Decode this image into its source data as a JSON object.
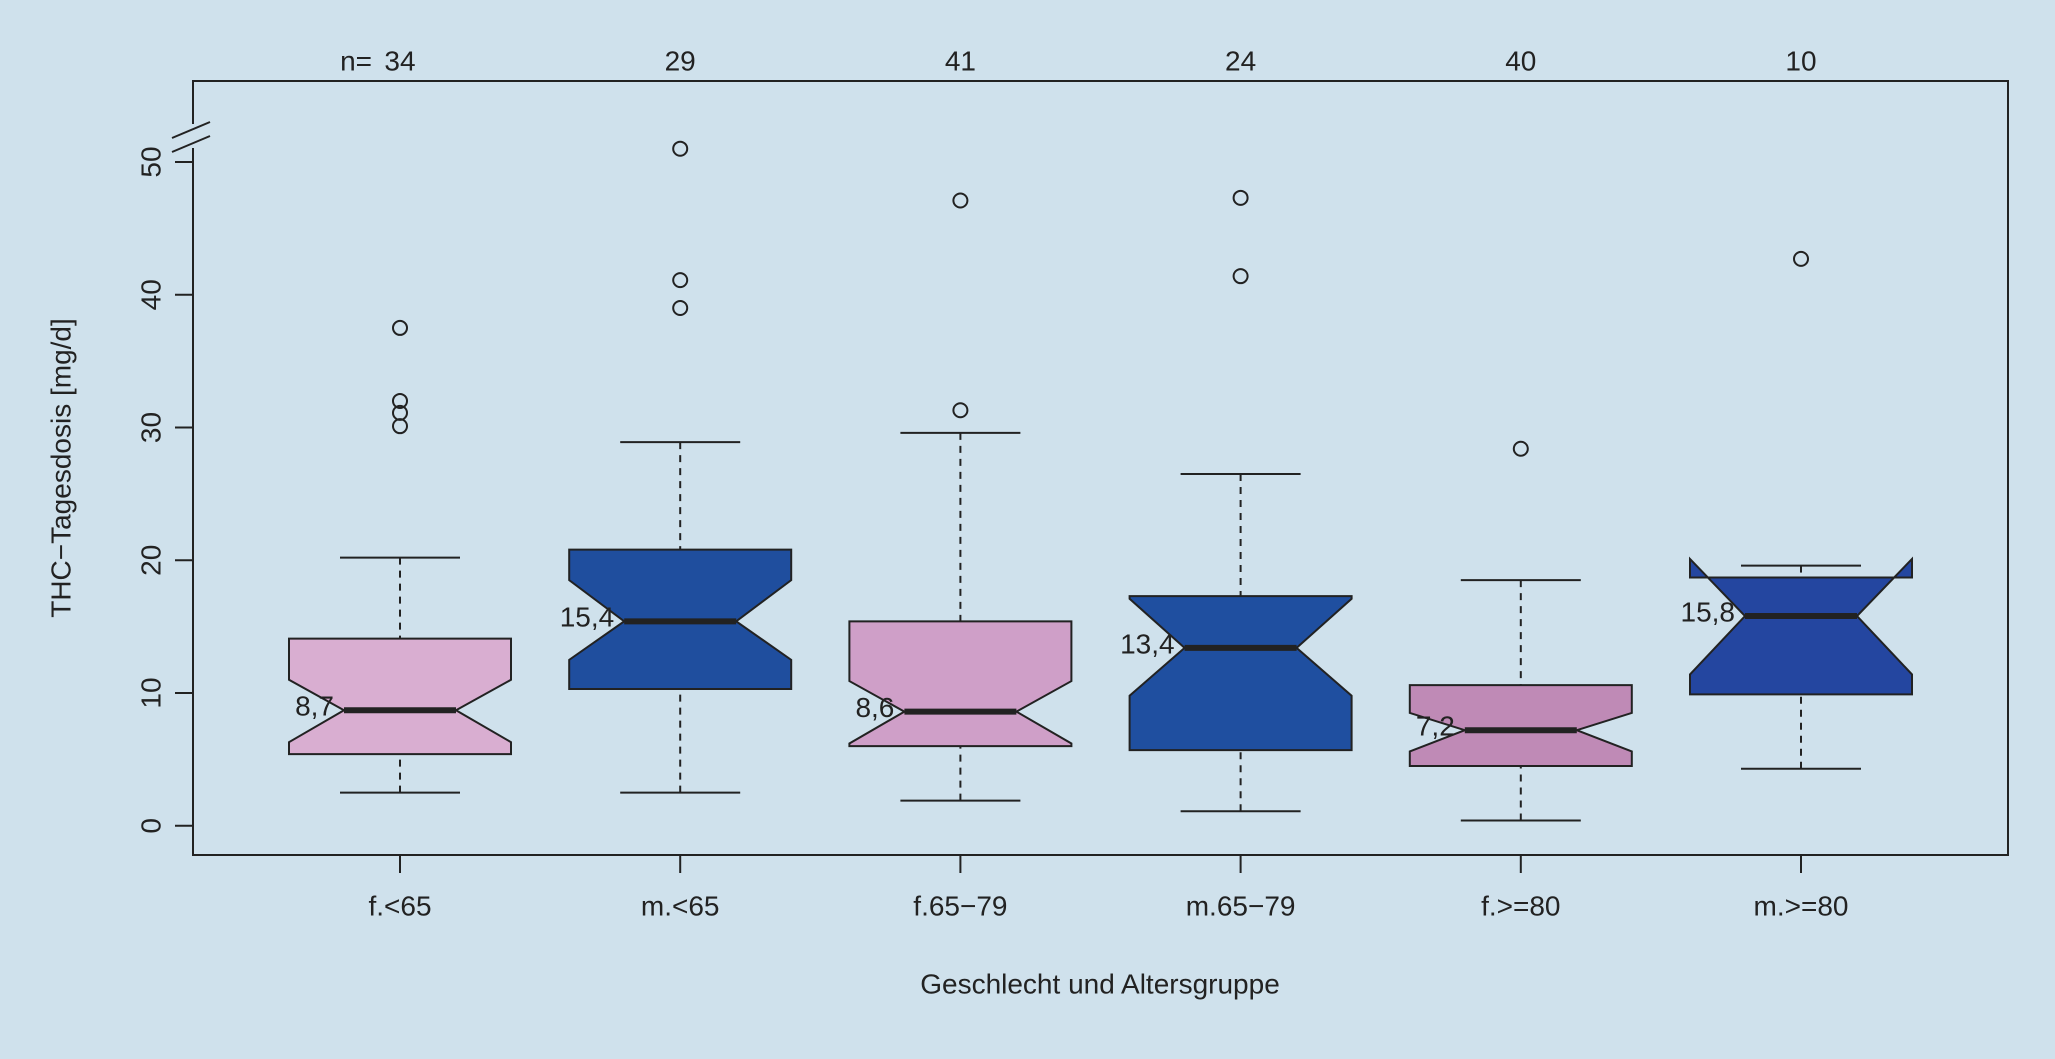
{
  "chart_data": {
    "type": "boxplot",
    "x_label": "Geschlecht und Altersgruppe",
    "y_label": "THC−Tagesdosis [mg/d]",
    "n_prefix": "n=",
    "categories": [
      "f.<65",
      "m.<65",
      "f.65−79",
      "m.65−79",
      "f.>=80",
      "m.>=80"
    ],
    "counts": [
      34,
      29,
      41,
      24,
      40,
      10
    ],
    "colors": [
      "#d9aed1",
      "#1f4e9e",
      "#cf9fc8",
      "#1f4fa0",
      "#bf8ab6",
      "#2446a0"
    ],
    "whisker_low": [
      2.5,
      2.5,
      1.9,
      1.1,
      0.4,
      4.3
    ],
    "q1": [
      5.4,
      10.3,
      6.0,
      5.7,
      4.5,
      9.9
    ],
    "median": [
      8.7,
      15.4,
      8.6,
      13.4,
      7.2,
      15.8
    ],
    "median_labels": [
      "8,7",
      "15,4",
      "8,6",
      "13,4",
      "7,2",
      "15,8"
    ],
    "q3": [
      14.1,
      20.8,
      15.4,
      17.3,
      10.6,
      18.7
    ],
    "whisker_high": [
      20.2,
      28.9,
      29.6,
      26.5,
      18.5,
      19.6
    ],
    "notch_low": [
      6.3,
      12.5,
      6.2,
      9.8,
      5.6,
      11.4
    ],
    "notch_high": [
      11.0,
      18.5,
      10.9,
      17.1,
      8.5,
      20.1
    ],
    "outliers": [
      [
        37.5,
        32.0,
        31.1,
        30.1
      ],
      [
        51.0,
        41.1,
        39.0
      ],
      [
        47.1,
        31.3
      ],
      [
        47.3,
        41.4
      ],
      [
        28.4
      ],
      [
        42.7
      ]
    ],
    "ylim": [
      -2.2,
      56.1
    ],
    "yticks": [
      0,
      10,
      20,
      30,
      40,
      50
    ]
  }
}
